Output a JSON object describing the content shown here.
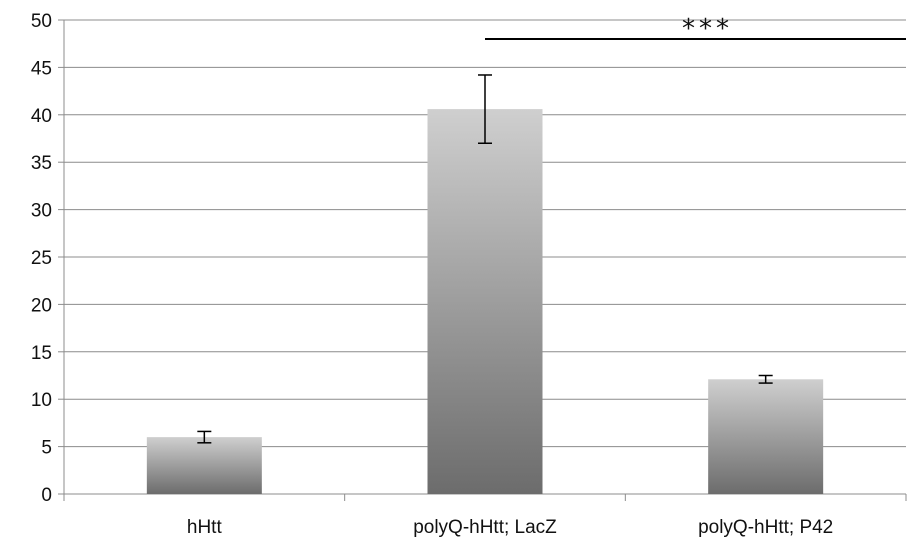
{
  "chart_data": {
    "type": "bar",
    "categories": [
      "hHtt",
      "polyQ-hHtt; LacZ",
      "polyQ-hHtt; P42"
    ],
    "values": [
      6.0,
      40.6,
      12.1
    ],
    "error": [
      0.6,
      3.6,
      0.4
    ],
    "title": "",
    "xlabel": "",
    "ylabel": "",
    "ylim": [
      0,
      50
    ],
    "yticks": [
      0,
      5,
      10,
      15,
      20,
      25,
      30,
      35,
      40,
      45,
      50
    ],
    "grid": true,
    "legend": "none",
    "bar_gradient": [
      "#cfcfcf",
      "#6c6c6c"
    ],
    "significance": {
      "label": "***",
      "from_category": 1,
      "to_category": 2,
      "y": 48
    }
  }
}
